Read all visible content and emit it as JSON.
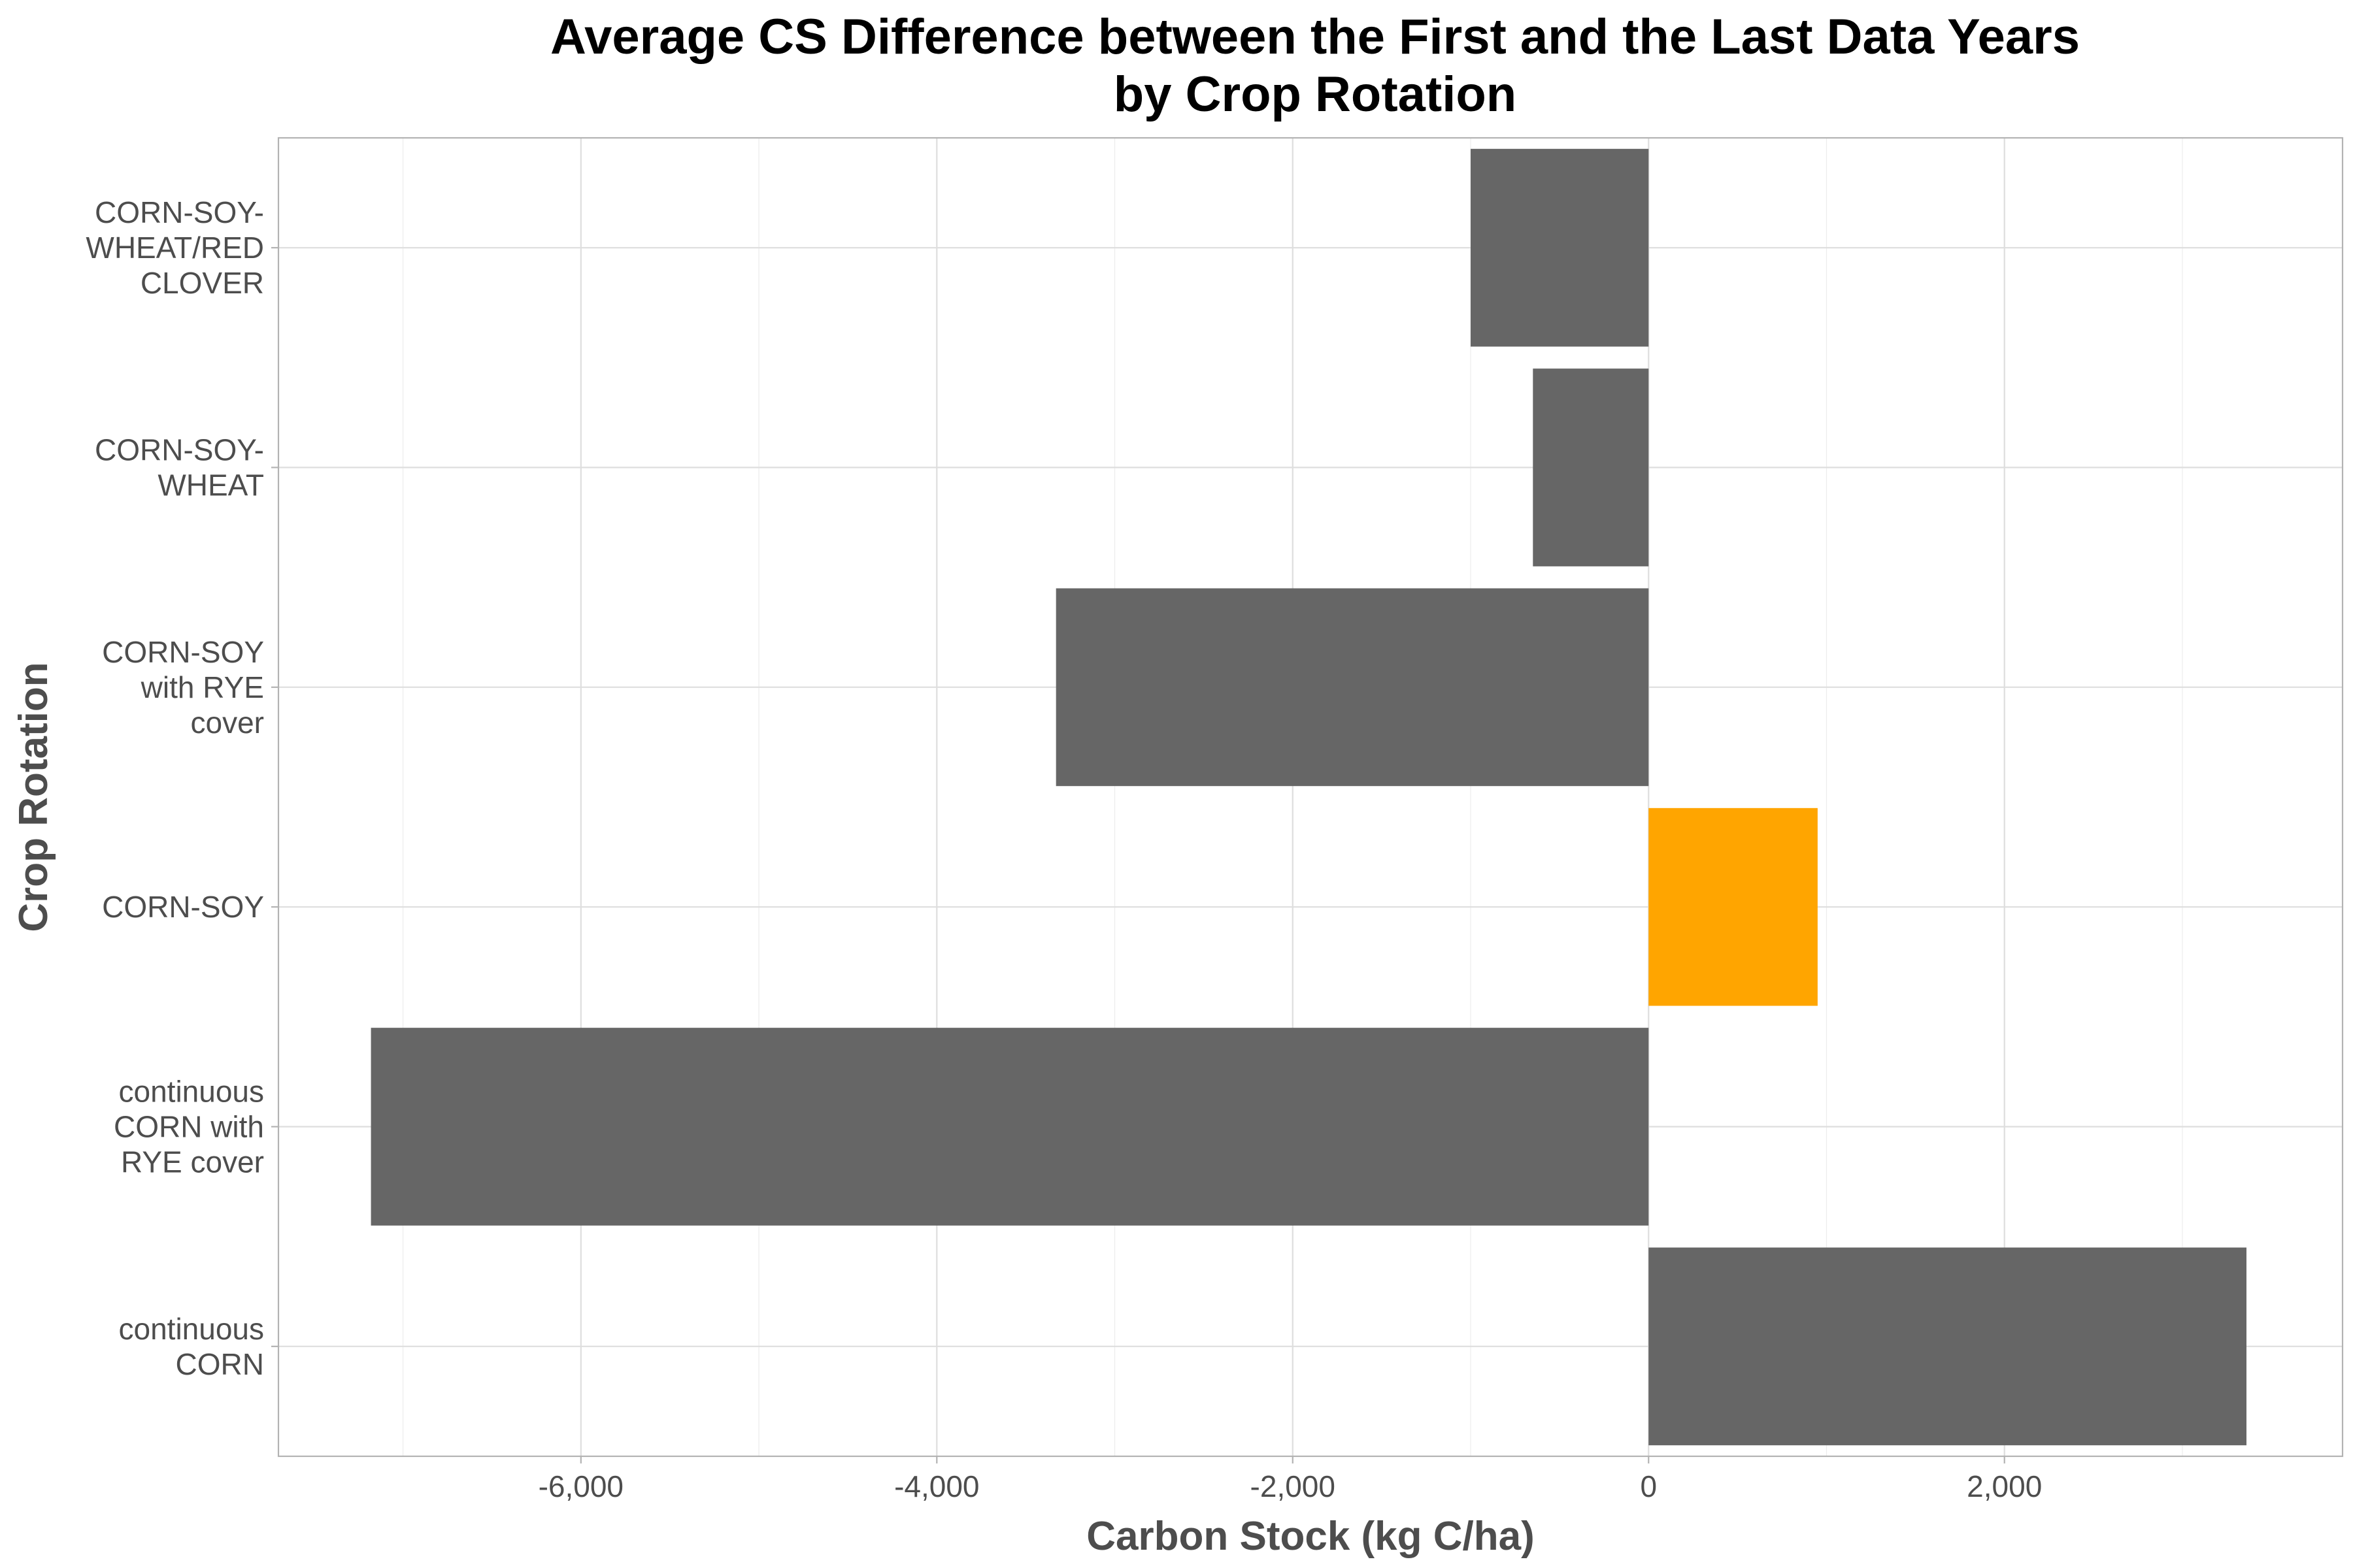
{
  "chart_data": {
    "type": "bar",
    "orientation": "horizontal",
    "title": [
      "Average CS Difference between the First and the Last Data Years",
      "by Crop Rotation"
    ],
    "xlabel": "Carbon Stock (kg C/ha)",
    "ylabel": "Crop Rotation",
    "xlim": [
      -7700,
      3900
    ],
    "x_ticks": [
      -6000,
      -4000,
      -2000,
      0,
      2000
    ],
    "x_tick_labels": [
      "-6,000",
      "-4,000",
      "-2,000",
      "0",
      "2,000"
    ],
    "grid": true,
    "legend": "none",
    "colors": {
      "default_bar": "#666666",
      "highlight_bar": "#FFA500",
      "grid": "#dedede",
      "border": "#b3b3b3",
      "text": "#4d4d4d"
    },
    "categories": [
      "CORN-SOY-WHEAT/RED CLOVER",
      "CORN-SOY-WHEAT",
      "CORN-SOY with RYE cover",
      "CORN-SOY",
      "continuous CORN with RYE cover",
      "continuous CORN"
    ],
    "category_label_lines": [
      [
        "CORN-SOY-",
        "WHEAT/RED",
        "CLOVER"
      ],
      [
        "CORN-SOY-",
        "WHEAT"
      ],
      [
        "CORN-SOY",
        "with RYE",
        "cover"
      ],
      [
        "CORN-SOY"
      ],
      [
        "continuous",
        "CORN with",
        "RYE cover"
      ],
      [
        "continuous",
        "CORN"
      ]
    ],
    "values": [
      -1000,
      -650,
      -3330,
      950,
      -7180,
      3360
    ],
    "highlighted": [
      false,
      false,
      false,
      true,
      false,
      false
    ]
  }
}
